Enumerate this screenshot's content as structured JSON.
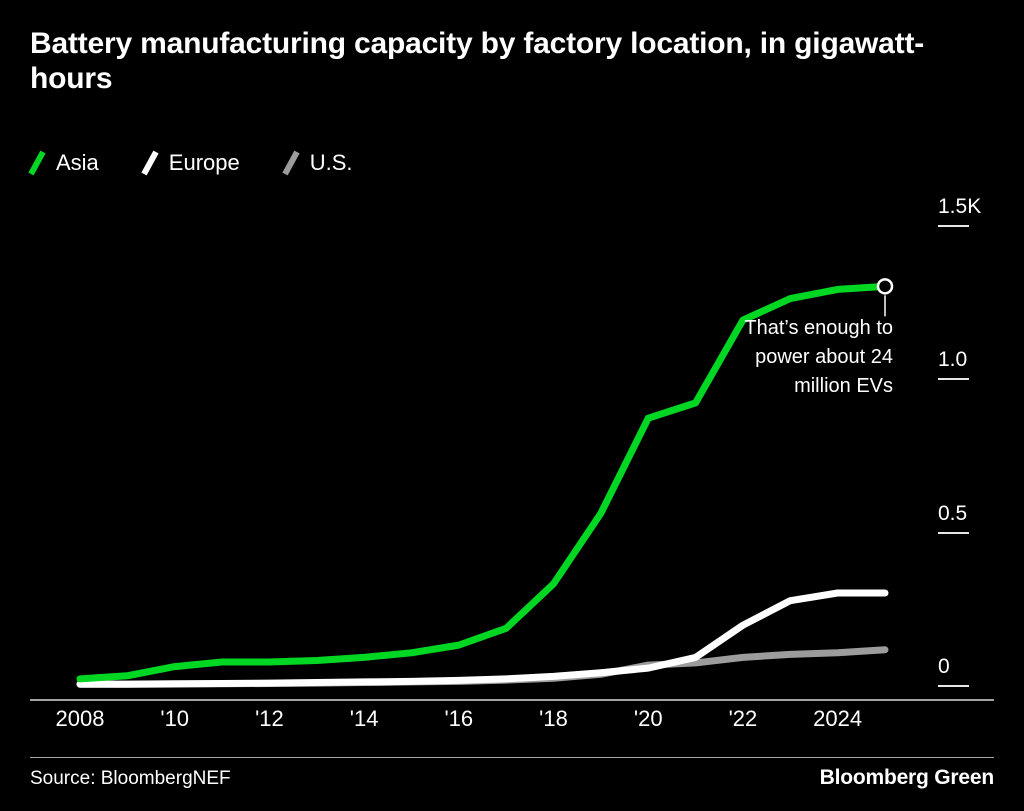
{
  "header": {
    "title": "Battery manufacturing capacity by factory location, in gigawatt-hours"
  },
  "legend": [
    {
      "label": "Asia",
      "color": "#00D723"
    },
    {
      "label": "Europe",
      "color": "#FFFFFF"
    },
    {
      "label": "U.S.",
      "color": "#9C9C9C"
    }
  ],
  "annotation": {
    "text": "That’s enough to power about 24 million EVs"
  },
  "footer": {
    "source": "Source: BloombergNEF",
    "brand": "Bloomberg Green"
  },
  "chart_data": {
    "type": "line",
    "title": "Battery manufacturing capacity by factory location, in gigawatt-hours",
    "ylabel": "gigawatt-hours",
    "x": [
      2008,
      2009,
      2010,
      2011,
      2012,
      2013,
      2014,
      2015,
      2016,
      2017,
      2018,
      2019,
      2020,
      2021,
      2022,
      2023,
      2024,
      2025
    ],
    "series": [
      {
        "name": "Asia",
        "color": "#00D723",
        "values": [
          20,
          30,
          60,
          75,
          75,
          80,
          90,
          105,
          130,
          185,
          330,
          560,
          870,
          920,
          1190,
          1260,
          1290,
          1300
        ]
      },
      {
        "name": "Europe",
        "color": "#FFFFFF",
        "values": [
          3,
          3,
          4,
          5,
          6,
          8,
          10,
          12,
          15,
          20,
          28,
          40,
          55,
          90,
          195,
          275,
          300,
          300
        ]
      },
      {
        "name": "U.S.",
        "color": "#9C9C9C",
        "values": [
          2,
          2,
          3,
          4,
          5,
          6,
          8,
          10,
          12,
          16,
          22,
          35,
          65,
          72,
          90,
          100,
          105,
          115
        ]
      }
    ],
    "xlim": [
      2008,
      2025
    ],
    "ylim": [
      0,
      1500
    ],
    "grid": false,
    "legend_position": "top-left",
    "y_ticks": [
      {
        "label": "1.5K",
        "value": 1500
      },
      {
        "label": "1.0",
        "value": 1000
      },
      {
        "label": "0.5",
        "value": 500
      },
      {
        "label": "0",
        "value": 0
      }
    ],
    "x_ticks": [
      {
        "label": "2008",
        "year": 2008
      },
      {
        "label": "'10",
        "year": 2010
      },
      {
        "label": "'12",
        "year": 2012
      },
      {
        "label": "'14",
        "year": 2014
      },
      {
        "label": "'16",
        "year": 2016
      },
      {
        "label": "'18",
        "year": 2018
      },
      {
        "label": "'20",
        "year": 2020
      },
      {
        "label": "'22",
        "year": 2022
      },
      {
        "label": "2024",
        "year": 2024
      }
    ],
    "annotation": {
      "text": "That’s enough to power about 24 million EVs",
      "x": 2025,
      "y": 1300
    }
  }
}
